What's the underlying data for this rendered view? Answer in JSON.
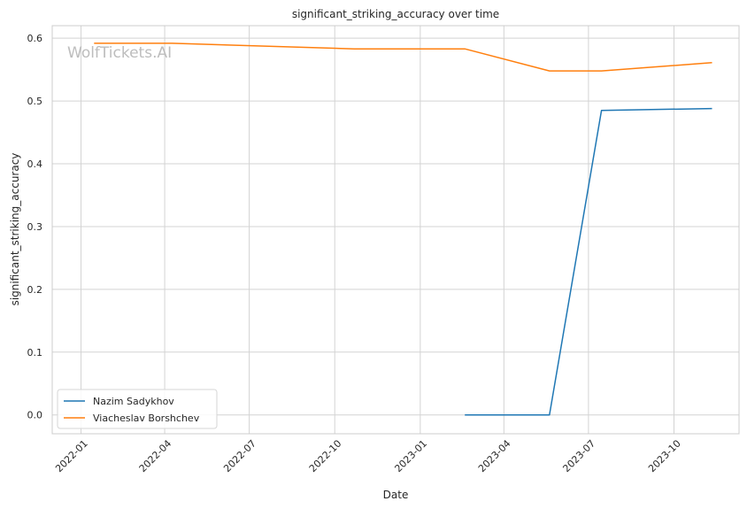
{
  "chart_data": {
    "type": "line",
    "title": "significant_striking_accuracy over time",
    "xlabel": "Date",
    "ylabel": "significant_striking_accuracy",
    "watermark": "WolfTickets.AI",
    "x_ticks": [
      "2022-01",
      "2022-04",
      "2022-07",
      "2022-10",
      "2023-01",
      "2023-04",
      "2023-07",
      "2023-10"
    ],
    "y_ticks": [
      "0.0",
      "0.1",
      "0.2",
      "0.3",
      "0.4",
      "0.5",
      "0.6"
    ],
    "xlim": [
      "2021-12-01",
      "2023-12-10"
    ],
    "ylim": [
      -0.03,
      0.62
    ],
    "grid": true,
    "legend_position": "lower-left",
    "series": [
      {
        "name": "Nazim Sadykhov",
        "color": "#1f77b4",
        "points": [
          {
            "x": "2023-02-18",
            "y": 0.0
          },
          {
            "x": "2023-05-20",
            "y": 0.0
          },
          {
            "x": "2023-07-15",
            "y": 0.485
          },
          {
            "x": "2023-11-11",
            "y": 0.488
          }
        ]
      },
      {
        "name": "Viacheslav Borshchev",
        "color": "#ff7f0e",
        "points": [
          {
            "x": "2022-01-15",
            "y": 0.592
          },
          {
            "x": "2022-04-09",
            "y": 0.592
          },
          {
            "x": "2022-10-22",
            "y": 0.583
          },
          {
            "x": "2023-02-18",
            "y": 0.583
          },
          {
            "x": "2023-05-20",
            "y": 0.548
          },
          {
            "x": "2023-07-15",
            "y": 0.548
          },
          {
            "x": "2023-11-11",
            "y": 0.561
          }
        ]
      }
    ]
  }
}
